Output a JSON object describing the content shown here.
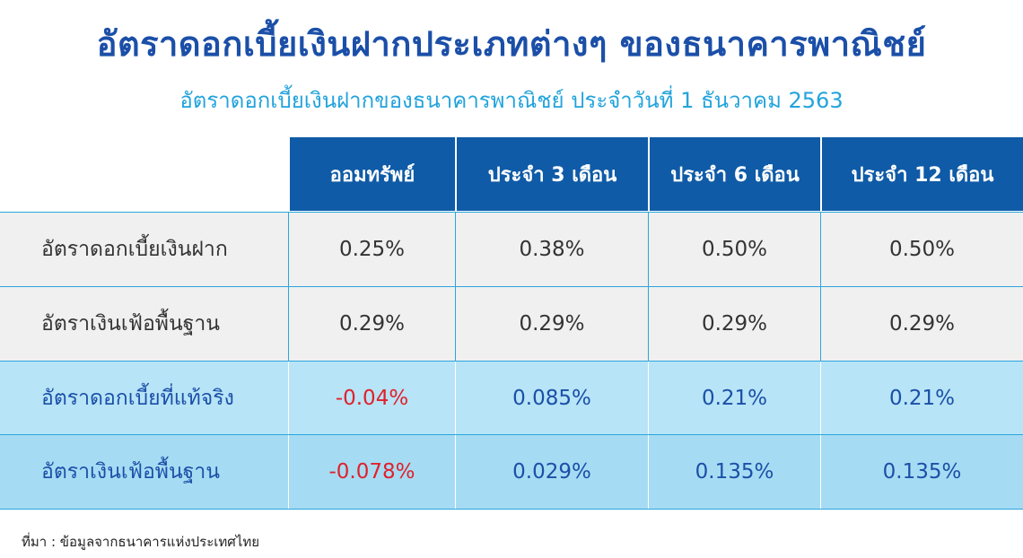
{
  "title": "อัตราดอกเบี้ยเงินฝากประเภทต่างๆ ของธนาคารพาณิชย์",
  "subtitle": "อัตราดอกเบี้ยเงินฝากของธนาคารพาณิชย์ ประจำวันที่ 1 ธันวาคม 2563",
  "source": "ที่มา : ข้อมูลจากธนาคารแห่งประเทศไทย",
  "colors": {
    "header_bg": "#0f5ba7",
    "title": "#1b4fa8",
    "subtitle": "#22a3dc",
    "negative": "#e0212b",
    "row_blue": "#b7e4f6",
    "row_grey": "#f0f0f0"
  },
  "chart_data": {
    "type": "table",
    "columns": [
      "ออมทรัพย์",
      "ประจำ 3 เดือน",
      "ประจำ 6 เดือน",
      "ประจำ 12 เดือน"
    ],
    "rows": [
      {
        "label": "อัตราดอกเบี้ยเงินฝาก",
        "values": [
          "0.25%",
          "0.38%",
          "0.50%",
          "0.50%"
        ]
      },
      {
        "label": "อัตราเงินเฟ้อพื้นฐาน",
        "values": [
          "0.29%",
          "0.29%",
          "0.29%",
          "0.29%"
        ]
      },
      {
        "label": "อัตราดอกเบี้ยที่แท้จริง",
        "values": [
          "-0.04%",
          "0.085%",
          "0.21%",
          "0.21%"
        ]
      },
      {
        "label": "อัตราเงินเฟ้อพื้นฐาน",
        "values": [
          "-0.078%",
          "0.029%",
          "0.135%",
          "0.135%"
        ]
      }
    ]
  }
}
